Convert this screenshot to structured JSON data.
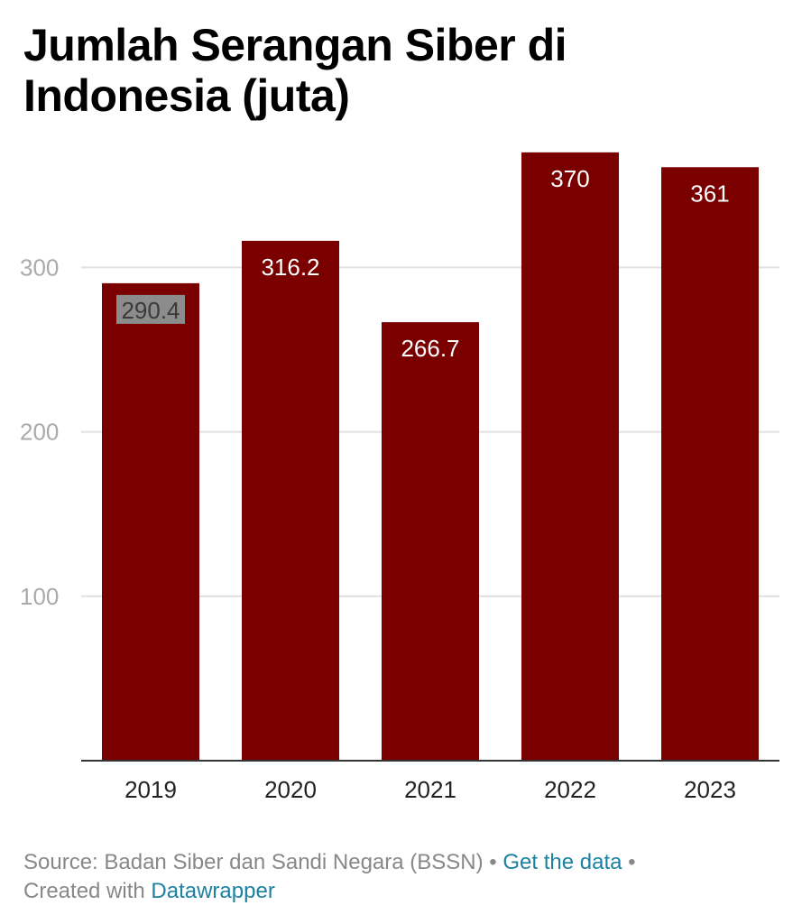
{
  "header": {
    "title": "Jumlah Serangan Siber di Indonesia (juta)"
  },
  "chart_data": {
    "type": "bar",
    "title": "Jumlah Serangan Siber di Indonesia (juta)",
    "categories": [
      "2019",
      "2020",
      "2021",
      "2022",
      "2023"
    ],
    "values": [
      290.4,
      316.2,
      266.7,
      370,
      361
    ],
    "value_labels": [
      "290.4",
      "316.2",
      "266.7",
      "370",
      "361"
    ],
    "yticks": [
      100,
      200,
      300
    ],
    "ytick_labels": [
      "100",
      "200",
      "300"
    ],
    "ylim": [
      0,
      370
    ],
    "xlabel": "",
    "ylabel": "",
    "grid": true,
    "legend": "none",
    "bar_color": "#7a0000",
    "highlighted_label_index": 0,
    "highlight_color": "#8c8c8c"
  },
  "footer": {
    "source": "Source: Badan Siber dan Sandi Negara (BSSN)",
    "separator": "•",
    "get_data": "Get the data",
    "created_with": "Created with",
    "tool": "Datawrapper"
  },
  "colors": {
    "bar": "#7a0000",
    "grid": "#e0e0e0",
    "tick_label": "#aaaaaa",
    "axis": "#333333",
    "link": "#1d81a2",
    "footer_text": "#888888"
  }
}
